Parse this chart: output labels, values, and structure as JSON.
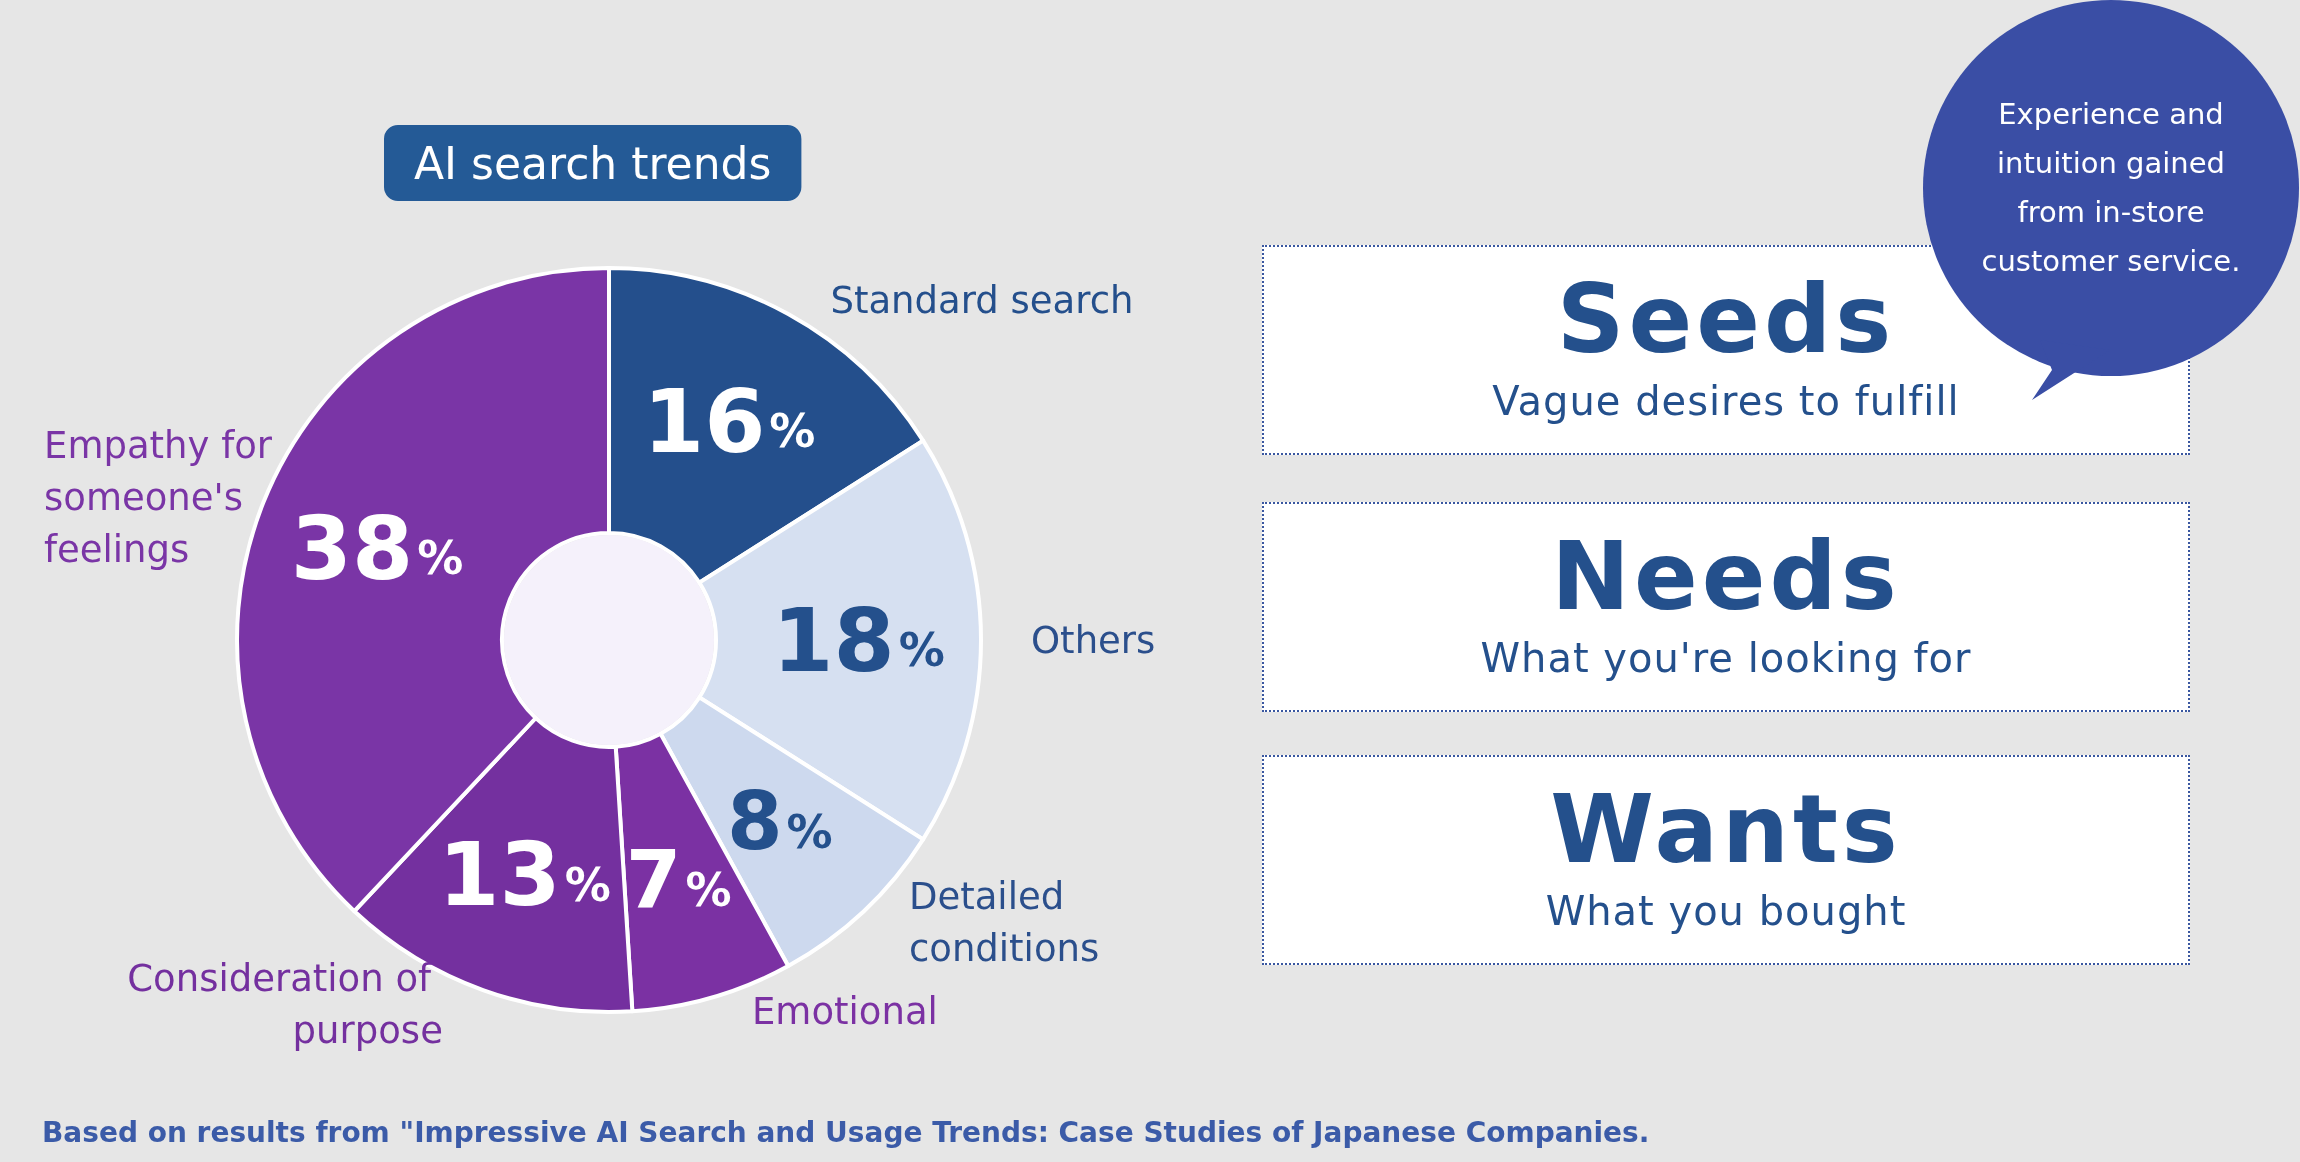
{
  "chart_data": [
    {
      "type": "donut",
      "title": "AI search trends",
      "categories": [
        "Standard search",
        "Others",
        "Detailed conditions",
        "Emotional",
        "Consideration of purpose",
        "Empathy for someone's feelings"
      ],
      "values": [
        16,
        18,
        8,
        7,
        13,
        38
      ],
      "value_labels": [
        "16%",
        "18%",
        "8%",
        "7%",
        "13%",
        "38%"
      ],
      "colors": [
        "#244f8c",
        "#d6e0f1",
        "#cdd9ee",
        "#7b31a3",
        "#74309f",
        "#7a35a6"
      ],
      "legend": false,
      "annotations": [
        "Based on results from \"Impressive AI Search and Usage Trends: Case Studies of Japanese Companies."
      ]
    },
    {
      "type": "other",
      "annotations": [
        "Experience and intuition gained from in-store customer service.",
        "Seeds",
        "Vague desires to fulfill",
        "Needs",
        "What you're looking for",
        "Wants",
        "What you bought"
      ]
    }
  ]
}
